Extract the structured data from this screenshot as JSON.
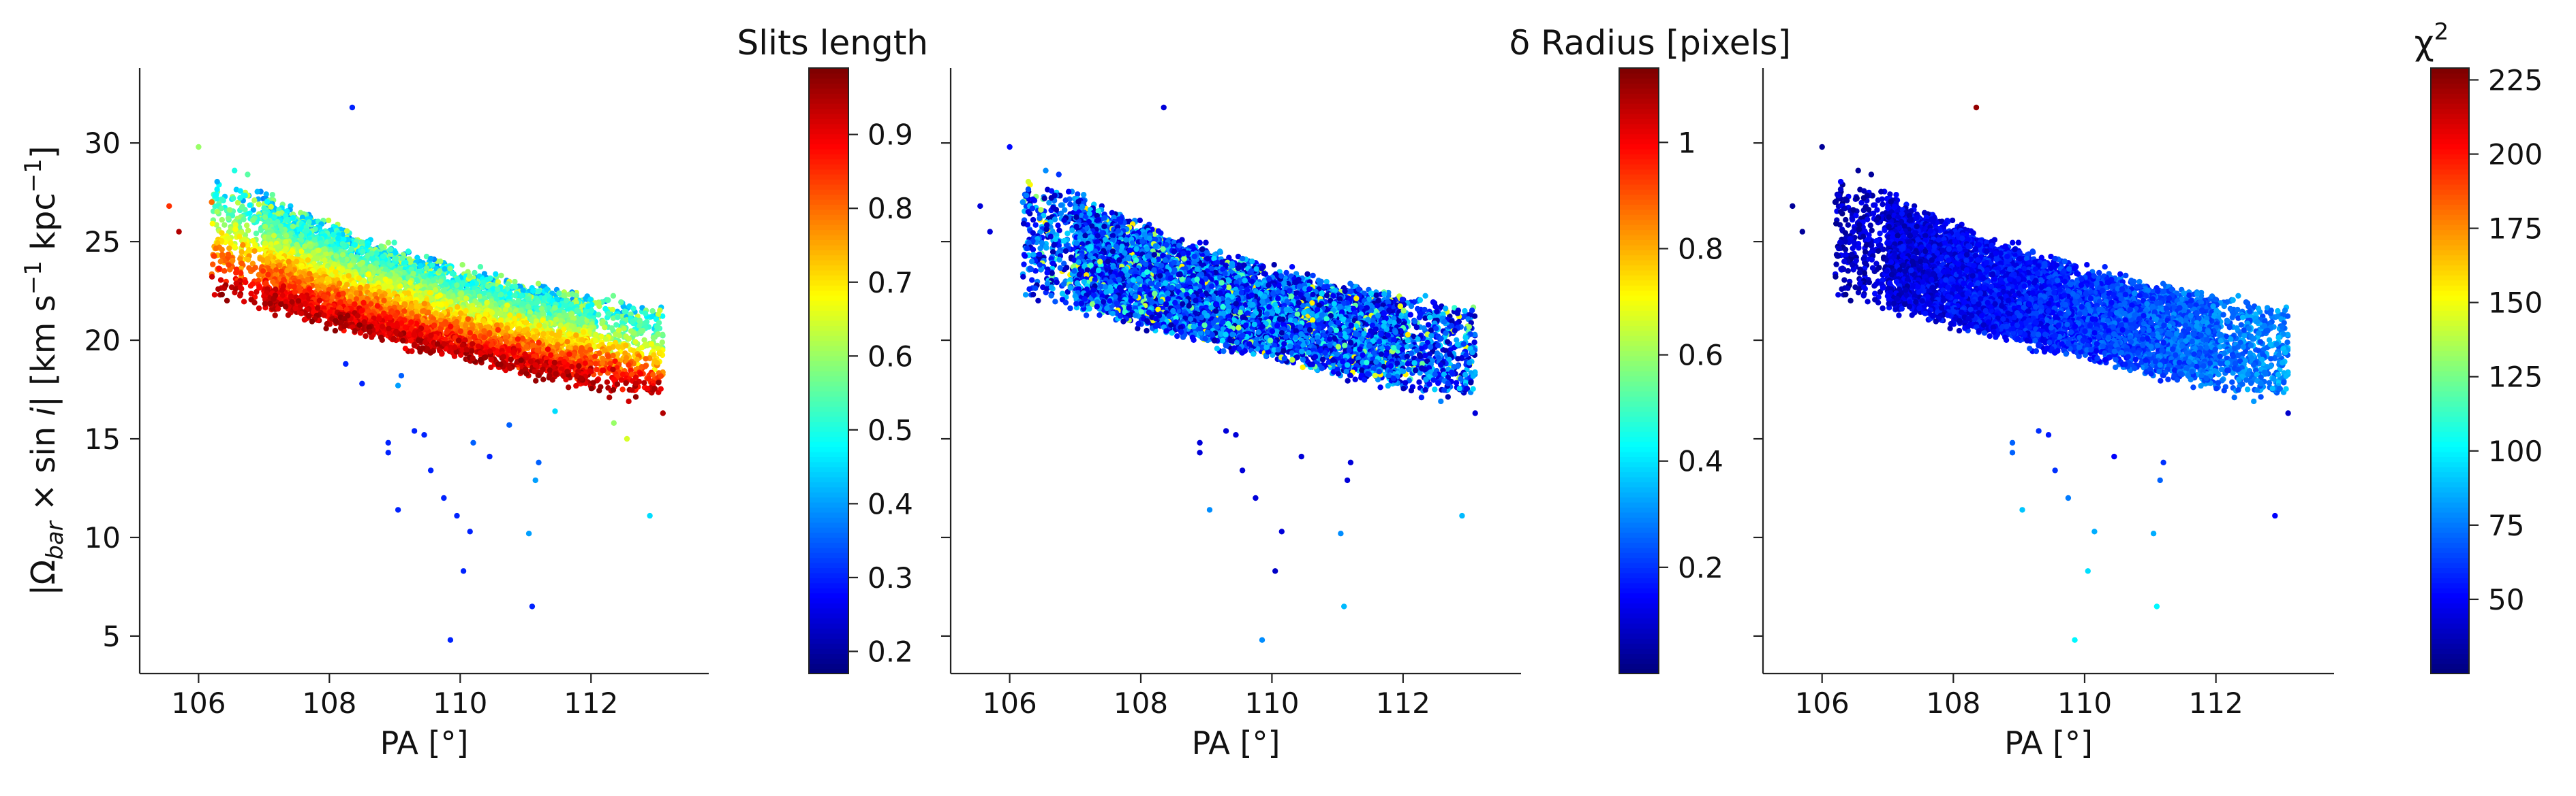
{
  "figure": {
    "ylabel_shared": "|Ω_bar × sin i|   [km s⁻¹ kpc⁻¹]"
  },
  "chart_data": [
    {
      "type": "scatter",
      "title": "Slits length",
      "xlabel": "PA [°]",
      "ylabel": "|Ω_bar × sin i|   [km s⁻¹ kpc⁻¹]",
      "xlim": [
        105.1,
        113.8
      ],
      "ylim": [
        3.1,
        33.8
      ],
      "xticks": [
        106,
        108,
        110,
        112
      ],
      "yticks": [
        5,
        10,
        15,
        20,
        25,
        30
      ],
      "colorbar": {
        "label": "Slits length",
        "range": [
          0.17,
          0.99
        ],
        "ticks": [
          0.2,
          0.3,
          0.4,
          0.5,
          0.6,
          0.7,
          0.8,
          0.9
        ],
        "cmap": "jet"
      },
      "color_mode": "slits",
      "outliers": [
        {
          "x": 108.35,
          "y": 31.8,
          "c": 0.3
        },
        {
          "x": 106.0,
          "y": 29.8,
          "c": 0.6
        },
        {
          "x": 105.55,
          "y": 26.8,
          "c": 0.85
        },
        {
          "x": 105.7,
          "y": 25.5,
          "c": 0.95
        },
        {
          "x": 108.25,
          "y": 18.8,
          "c": 0.3
        },
        {
          "x": 108.5,
          "y": 17.8,
          "c": 0.3
        },
        {
          "x": 109.1,
          "y": 18.2,
          "c": 0.35
        },
        {
          "x": 109.05,
          "y": 17.7,
          "c": 0.4
        },
        {
          "x": 108.9,
          "y": 14.8,
          "c": 0.3
        },
        {
          "x": 108.9,
          "y": 14.3,
          "c": 0.3
        },
        {
          "x": 109.3,
          "y": 15.4,
          "c": 0.3
        },
        {
          "x": 109.45,
          "y": 15.2,
          "c": 0.3
        },
        {
          "x": 109.55,
          "y": 13.4,
          "c": 0.3
        },
        {
          "x": 109.05,
          "y": 11.4,
          "c": 0.3
        },
        {
          "x": 109.75,
          "y": 12.0,
          "c": 0.3
        },
        {
          "x": 109.95,
          "y": 11.1,
          "c": 0.3
        },
        {
          "x": 110.2,
          "y": 14.8,
          "c": 0.35
        },
        {
          "x": 110.45,
          "y": 14.1,
          "c": 0.3
        },
        {
          "x": 110.75,
          "y": 15.7,
          "c": 0.35
        },
        {
          "x": 110.15,
          "y": 10.3,
          "c": 0.3
        },
        {
          "x": 110.05,
          "y": 8.3,
          "c": 0.3
        },
        {
          "x": 109.85,
          "y": 4.8,
          "c": 0.3
        },
        {
          "x": 111.15,
          "y": 12.9,
          "c": 0.4
        },
        {
          "x": 111.2,
          "y": 13.8,
          "c": 0.35
        },
        {
          "x": 111.05,
          "y": 10.2,
          "c": 0.4
        },
        {
          "x": 111.1,
          "y": 6.5,
          "c": 0.3
        },
        {
          "x": 111.45,
          "y": 16.4,
          "c": 0.45
        },
        {
          "x": 112.35,
          "y": 15.8,
          "c": 0.6
        },
        {
          "x": 112.55,
          "y": 15.0,
          "c": 0.65
        },
        {
          "x": 112.9,
          "y": 11.1,
          "c": 0.45
        },
        {
          "x": 113.1,
          "y": 16.3,
          "c": 0.95
        },
        {
          "x": 106.55,
          "y": 28.6,
          "c": 0.5
        },
        {
          "x": 106.75,
          "y": 28.4,
          "c": 0.55
        },
        {
          "x": 106.2,
          "y": 27.0,
          "c": 0.8
        }
      ]
    },
    {
      "type": "scatter",
      "title": "δ Radius [pixels]",
      "xlabel": "PA [°]",
      "ylabel": "",
      "xlim": [
        105.1,
        113.8
      ],
      "ylim": [
        3.1,
        33.8
      ],
      "xticks": [
        106,
        108,
        110,
        112
      ],
      "yticks": [
        5,
        10,
        15,
        20,
        25,
        30
      ],
      "colorbar": {
        "label": "δ Radius [pixels]",
        "range": [
          0.0,
          1.14
        ],
        "ticks": [
          0.2,
          0.4,
          0.6,
          0.8,
          1.0
        ],
        "cmap": "jet"
      },
      "color_mode": "delta",
      "outliers": [
        {
          "x": 108.35,
          "y": 31.8,
          "c": 0.1
        },
        {
          "x": 106.0,
          "y": 29.8,
          "c": 0.15
        },
        {
          "x": 105.55,
          "y": 26.8,
          "c": 0.1
        },
        {
          "x": 105.7,
          "y": 25.5,
          "c": 0.1
        },
        {
          "x": 108.9,
          "y": 14.8,
          "c": 0.1
        },
        {
          "x": 108.9,
          "y": 14.3,
          "c": 0.1
        },
        {
          "x": 109.3,
          "y": 15.4,
          "c": 0.1
        },
        {
          "x": 109.45,
          "y": 15.2,
          "c": 0.1
        },
        {
          "x": 109.55,
          "y": 13.4,
          "c": 0.1
        },
        {
          "x": 109.05,
          "y": 11.4,
          "c": 0.3
        },
        {
          "x": 109.75,
          "y": 12.0,
          "c": 0.1
        },
        {
          "x": 110.15,
          "y": 10.3,
          "c": 0.1
        },
        {
          "x": 110.05,
          "y": 8.3,
          "c": 0.08
        },
        {
          "x": 109.85,
          "y": 4.8,
          "c": 0.3
        },
        {
          "x": 110.45,
          "y": 14.1,
          "c": 0.1
        },
        {
          "x": 111.15,
          "y": 12.9,
          "c": 0.1
        },
        {
          "x": 111.2,
          "y": 13.8,
          "c": 0.1
        },
        {
          "x": 111.05,
          "y": 10.2,
          "c": 0.3
        },
        {
          "x": 111.1,
          "y": 6.5,
          "c": 0.35
        },
        {
          "x": 112.9,
          "y": 11.1,
          "c": 0.35
        },
        {
          "x": 113.1,
          "y": 16.3,
          "c": 0.1
        },
        {
          "x": 106.55,
          "y": 28.6,
          "c": 0.3
        },
        {
          "x": 106.75,
          "y": 28.4,
          "c": 0.2
        },
        {
          "x": 106.2,
          "y": 27.0,
          "c": 0.3
        }
      ]
    },
    {
      "type": "scatter",
      "title": "",
      "xlabel": "PA [°]",
      "ylabel": "",
      "xlim": [
        105.1,
        113.8
      ],
      "ylim": [
        3.1,
        33.8
      ],
      "xticks": [
        106,
        108,
        110,
        112
      ],
      "yticks": [
        5,
        10,
        15,
        20,
        25,
        30
      ],
      "colorbar": {
        "label": "χ²",
        "range": [
          25,
          229
        ],
        "ticks": [
          50,
          75,
          100,
          125,
          150,
          175,
          200,
          225
        ],
        "cmap": "jet"
      },
      "color_mode": "chi",
      "outliers": [
        {
          "x": 108.35,
          "y": 31.8,
          "c": 225
        },
        {
          "x": 106.0,
          "y": 29.8,
          "c": 30
        },
        {
          "x": 105.55,
          "y": 26.8,
          "c": 30
        },
        {
          "x": 105.7,
          "y": 25.5,
          "c": 30
        },
        {
          "x": 108.9,
          "y": 14.8,
          "c": 70
        },
        {
          "x": 108.9,
          "y": 14.3,
          "c": 70
        },
        {
          "x": 109.3,
          "y": 15.4,
          "c": 60
        },
        {
          "x": 109.45,
          "y": 15.2,
          "c": 55
        },
        {
          "x": 109.55,
          "y": 13.4,
          "c": 60
        },
        {
          "x": 109.05,
          "y": 11.4,
          "c": 90
        },
        {
          "x": 109.75,
          "y": 12.0,
          "c": 75
        },
        {
          "x": 110.15,
          "y": 10.3,
          "c": 85
        },
        {
          "x": 110.05,
          "y": 8.3,
          "c": 95
        },
        {
          "x": 109.85,
          "y": 4.8,
          "c": 100
        },
        {
          "x": 110.45,
          "y": 14.1,
          "c": 50
        },
        {
          "x": 111.15,
          "y": 12.9,
          "c": 70
        },
        {
          "x": 111.2,
          "y": 13.8,
          "c": 60
        },
        {
          "x": 111.05,
          "y": 10.2,
          "c": 85
        },
        {
          "x": 111.1,
          "y": 6.5,
          "c": 100
        },
        {
          "x": 112.9,
          "y": 11.1,
          "c": 50
        },
        {
          "x": 113.1,
          "y": 16.3,
          "c": 40
        },
        {
          "x": 106.55,
          "y": 28.6,
          "c": 30
        },
        {
          "x": 106.75,
          "y": 28.4,
          "c": 30
        },
        {
          "x": 106.2,
          "y": 27.0,
          "c": 30
        }
      ]
    }
  ]
}
